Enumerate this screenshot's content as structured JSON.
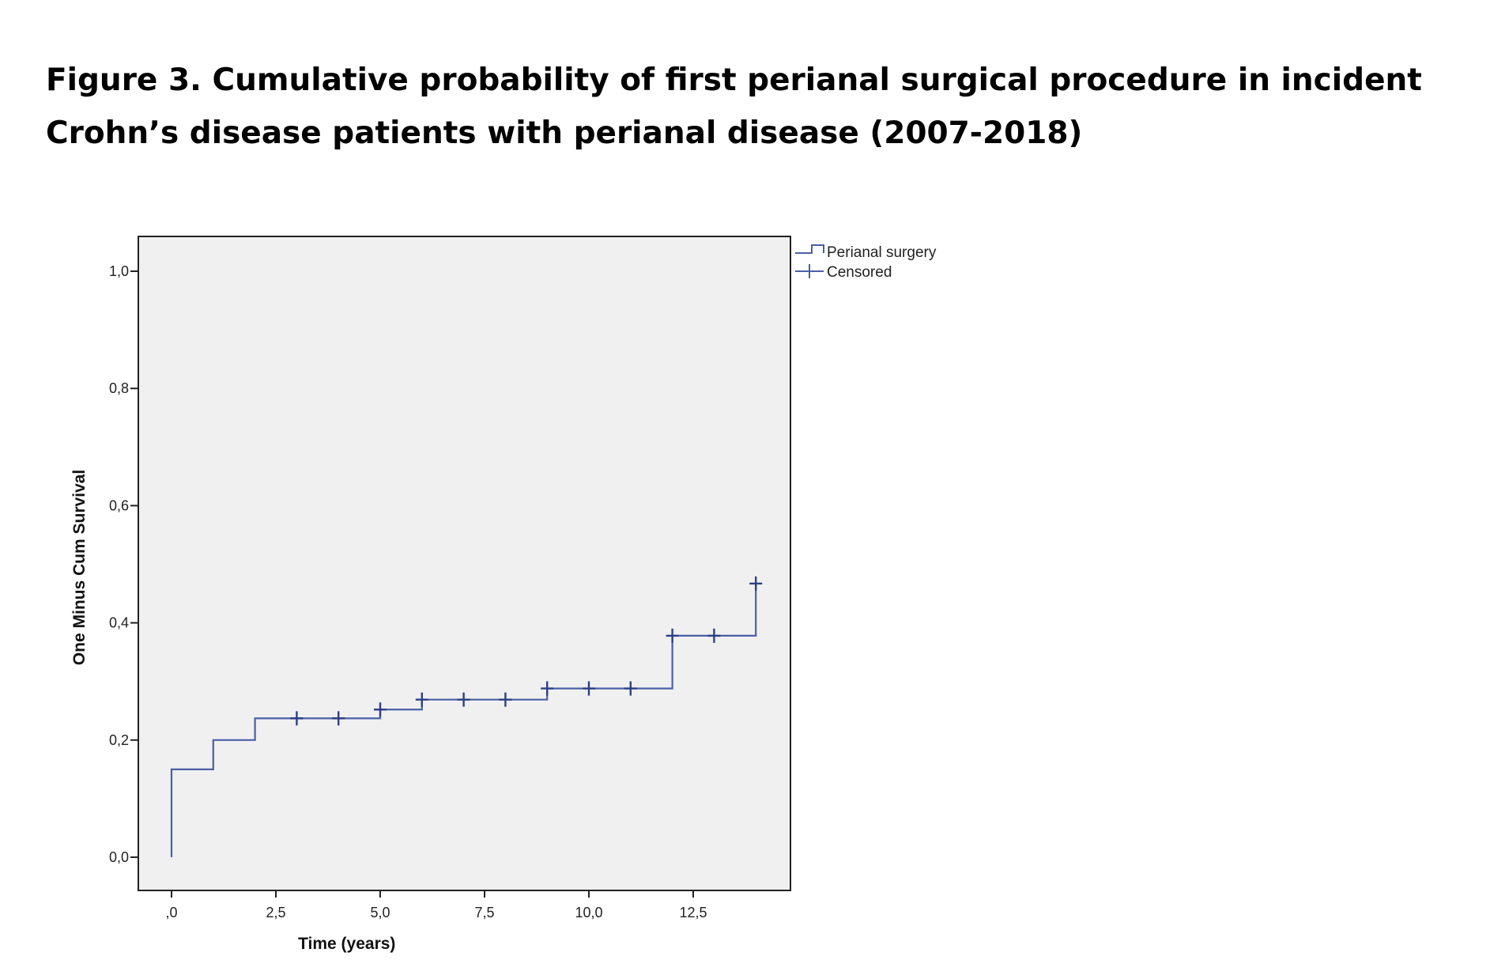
{
  "figure": {
    "title": "Figure 3. Cumulative probability of first perianal surgical procedure in incident Crohn’s disease patients with perianal disease (2007-2018)"
  },
  "colors": {
    "plot_background": "#f0f0f0",
    "series_line": "#4a5fa6",
    "censor_mark": "#2c3f86",
    "axis": "#222222"
  },
  "chart_data": {
    "type": "line",
    "subtype": "kaplan-meier step function",
    "xlabel": "Time (years)",
    "ylabel": "One Minus Cum Survival",
    "xlim": [
      -0.8,
      14.8
    ],
    "ylim": [
      -0.055,
      1.06
    ],
    "x_ticks": [
      0,
      2.5,
      5,
      7.5,
      10,
      12.5
    ],
    "x_tick_labels": [
      ",0",
      "2,5",
      "5,0",
      "7,5",
      "10,0",
      "12,5"
    ],
    "y_ticks": [
      0,
      0.2,
      0.4,
      0.6,
      0.8,
      1.0
    ],
    "y_tick_labels": [
      "0,0",
      "0,2",
      "0,4",
      "0,6",
      "0,8",
      "1,0"
    ],
    "grid": false,
    "legend_position": "outside-top-right",
    "series": [
      {
        "name": "Perianal surgery",
        "steps": [
          {
            "x": 0,
            "y": 0.0
          },
          {
            "x": 0,
            "y": 0.15
          },
          {
            "x": 1,
            "y": 0.2
          },
          {
            "x": 2,
            "y": 0.237
          },
          {
            "x": 5,
            "y": 0.252
          },
          {
            "x": 6,
            "y": 0.269
          },
          {
            "x": 9,
            "y": 0.288
          },
          {
            "x": 12,
            "y": 0.378
          },
          {
            "x": 14,
            "y": 0.467
          }
        ],
        "censored": [
          {
            "x": 3,
            "y": 0.237
          },
          {
            "x": 4,
            "y": 0.237
          },
          {
            "x": 5,
            "y": 0.252
          },
          {
            "x": 6,
            "y": 0.269
          },
          {
            "x": 7,
            "y": 0.269
          },
          {
            "x": 8,
            "y": 0.269
          },
          {
            "x": 9,
            "y": 0.288
          },
          {
            "x": 10,
            "y": 0.288
          },
          {
            "x": 11,
            "y": 0.288
          },
          {
            "x": 12,
            "y": 0.378
          },
          {
            "x": 13,
            "y": 0.378
          },
          {
            "x": 14,
            "y": 0.467
          }
        ]
      }
    ],
    "legend": [
      {
        "label": "Perianal surgery",
        "icon": "step-line-icon"
      },
      {
        "label": "Censored",
        "icon": "plus-marker-icon"
      }
    ]
  }
}
